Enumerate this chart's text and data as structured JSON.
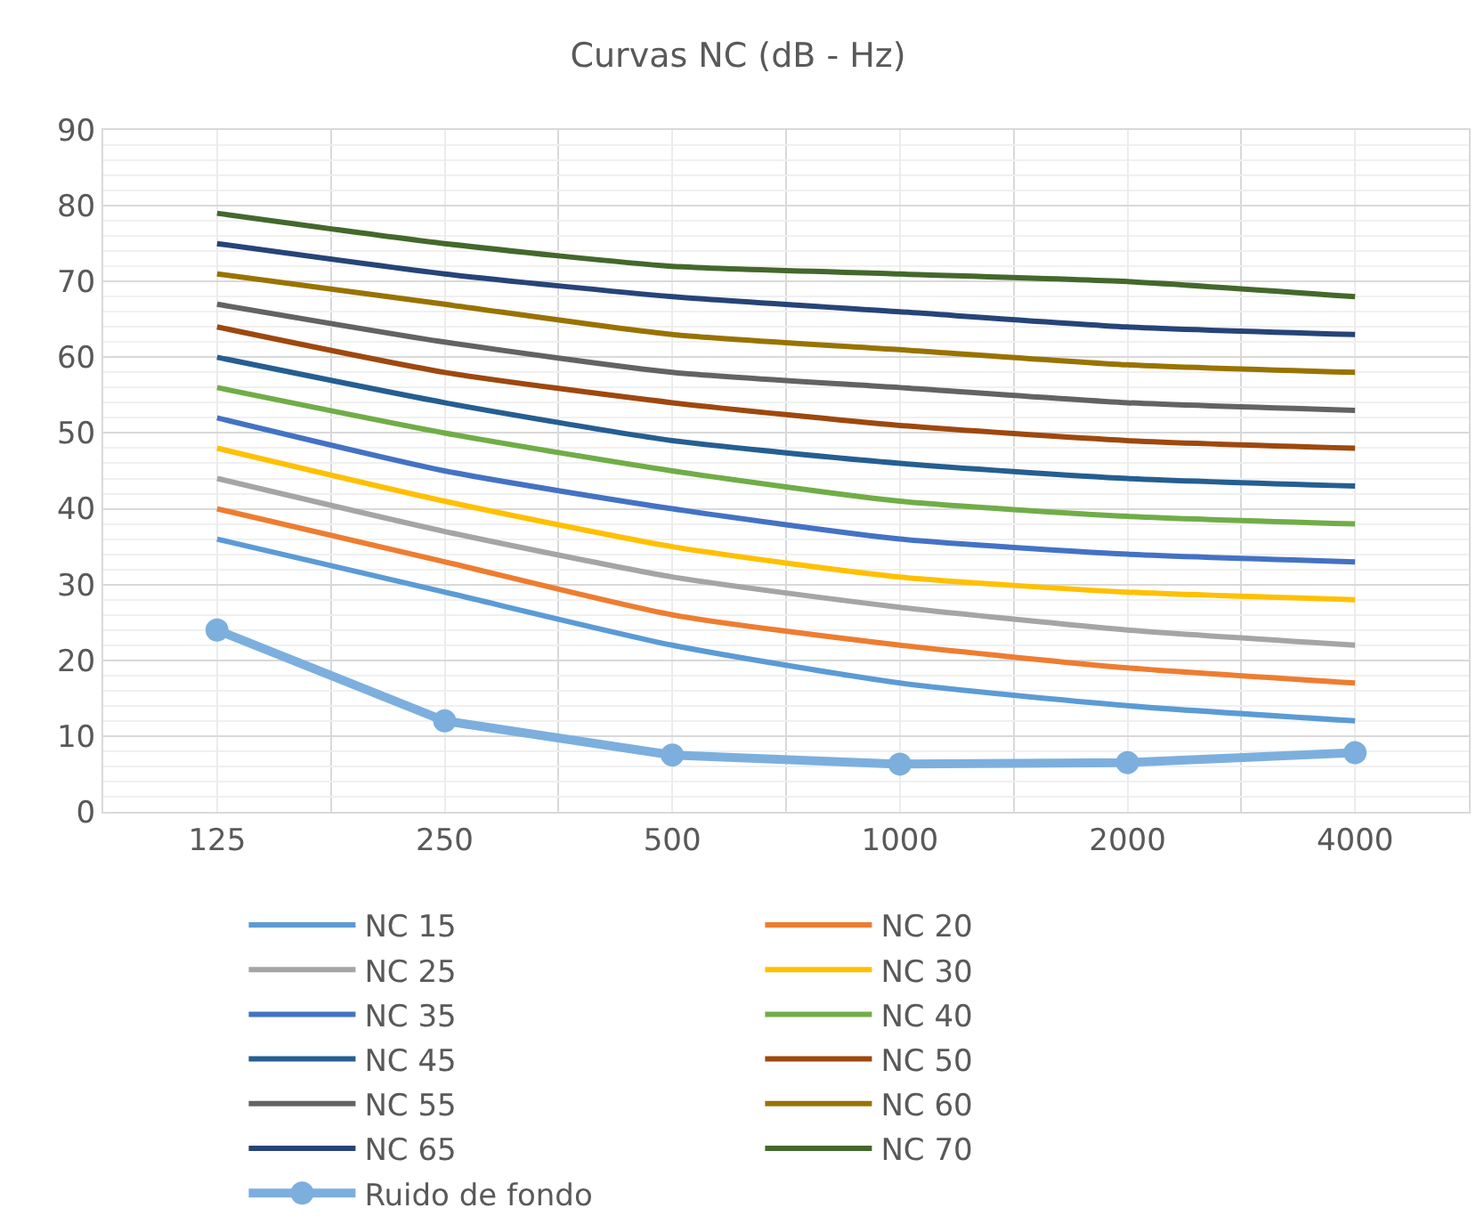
{
  "chart_data": {
    "type": "line",
    "title": "Curvas NC (dB - Hz)",
    "categories": [
      "125",
      "250",
      "500",
      "1000",
      "2000",
      "4000"
    ],
    "ylim": [
      0,
      90
    ],
    "yticks": [
      0,
      10,
      20,
      30,
      40,
      50,
      60,
      70,
      80,
      90
    ],
    "grid": true,
    "legend": "bottom",
    "marker": "none",
    "line_style": "solid",
    "series": [
      {
        "name": "NC 15",
        "color": "#5b9bd5",
        "values": [
          36,
          29,
          22,
          17,
          14,
          12
        ]
      },
      {
        "name": "NC 20",
        "color": "#ed7d31",
        "values": [
          40,
          33,
          26,
          22,
          19,
          17
        ]
      },
      {
        "name": "NC 25",
        "color": "#a5a5a5",
        "values": [
          44,
          37,
          31,
          27,
          24,
          22
        ]
      },
      {
        "name": "NC 30",
        "color": "#ffc000",
        "values": [
          48,
          41,
          35,
          31,
          29,
          28
        ]
      },
      {
        "name": "NC 35",
        "color": "#4472c4",
        "values": [
          52,
          45,
          40,
          36,
          34,
          33
        ]
      },
      {
        "name": "NC 40",
        "color": "#70ad47",
        "values": [
          56,
          50,
          45,
          41,
          39,
          38
        ]
      },
      {
        "name": "NC 45",
        "color": "#255e91",
        "values": [
          60,
          54,
          49,
          46,
          44,
          43
        ]
      },
      {
        "name": "NC 50",
        "color": "#9e480e",
        "values": [
          64,
          58,
          54,
          51,
          49,
          48
        ]
      },
      {
        "name": "NC 55",
        "color": "#636363",
        "values": [
          67,
          62,
          58,
          56,
          54,
          53
        ]
      },
      {
        "name": "NC 60",
        "color": "#997300",
        "values": [
          71,
          67,
          63,
          61,
          59,
          58
        ]
      },
      {
        "name": "NC 65",
        "color": "#264478",
        "values": [
          75,
          71,
          68,
          66,
          64,
          63
        ]
      },
      {
        "name": "NC 70",
        "color": "#43682b",
        "values": [
          79,
          75,
          72,
          71,
          70,
          68
        ]
      },
      {
        "name": "Ruido de fondo",
        "color": "#7cafdd",
        "values": [
          24,
          12,
          7.5,
          6.3,
          6.5,
          7.8
        ],
        "marker": "circle"
      }
    ]
  }
}
